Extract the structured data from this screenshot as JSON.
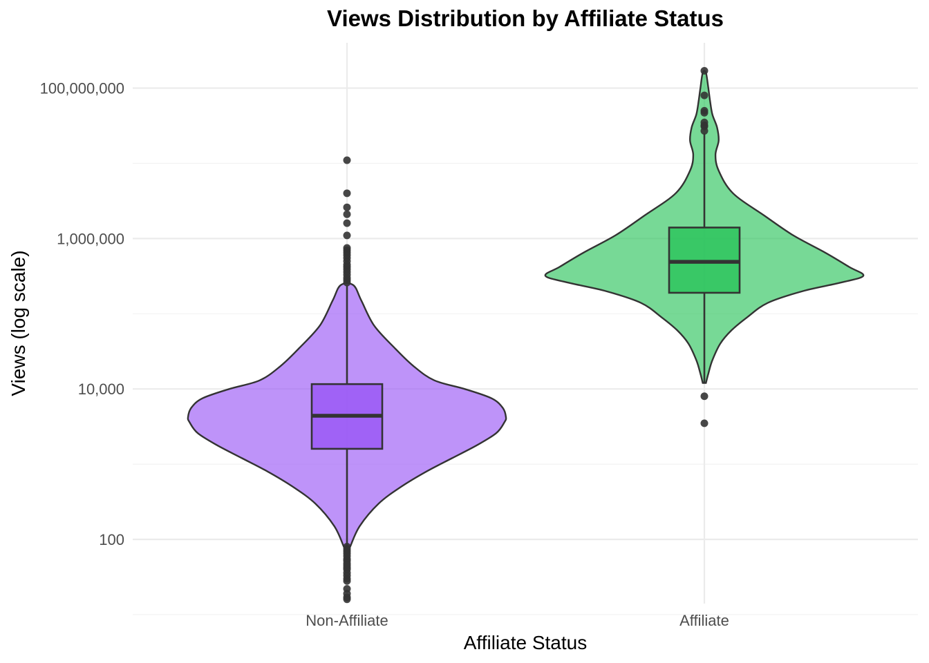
{
  "chart_data": {
    "type": "violin",
    "title": "Views Distribution by Affiliate Status",
    "xlabel": "Affiliate Status",
    "ylabel": "Views (log scale)",
    "y_scale": "log10",
    "ylim": [
      14,
      400000000
    ],
    "y_ticks": [
      {
        "value": 100,
        "label": "100"
      },
      {
        "value": 10000,
        "label": "10,000"
      },
      {
        "value": 1000000,
        "label": "1,000,000"
      },
      {
        "value": 100000000,
        "label": "100,000,000"
      }
    ],
    "grid": true,
    "legend": "none",
    "categories": [
      "Non-Affiliate",
      "Affiliate"
    ],
    "groups": [
      {
        "name": "Non-Affiliate",
        "color": "#9b59f6",
        "box": {
          "q1": 1600,
          "median": 4400,
          "q3": 11600,
          "whisker_low": 80,
          "whisker_high": 240000
        },
        "density": [
          [
            80,
            0.02
          ],
          [
            150,
            0.08
          ],
          [
            300,
            0.2
          ],
          [
            500,
            0.34
          ],
          [
            800,
            0.5
          ],
          [
            1200,
            0.66
          ],
          [
            1800,
            0.82
          ],
          [
            2600,
            0.94
          ],
          [
            3600,
            0.99
          ],
          [
            4200,
            1.0
          ],
          [
            5600,
            0.98
          ],
          [
            7500,
            0.91
          ],
          [
            10000,
            0.74
          ],
          [
            13000,
            0.55
          ],
          [
            20000,
            0.42
          ],
          [
            35000,
            0.3
          ],
          [
            70000,
            0.17
          ],
          [
            150000,
            0.09
          ],
          [
            240000,
            0.04
          ]
        ],
        "outliers": [
          11000000,
          4000000,
          2600000,
          2100000,
          1600000,
          1100000,
          750000,
          700000,
          650000,
          600000,
          550000,
          500000,
          450000,
          420000,
          390000,
          360000,
          330000,
          300000,
          280000,
          260000,
          80,
          75,
          70,
          65,
          60,
          55,
          52,
          48,
          45,
          42,
          40,
          36,
          33,
          30,
          28,
          22,
          19,
          17,
          16,
          12,
          11,
          10,
          9,
          8,
          5
        ]
      },
      {
        "name": "Affiliate",
        "color": "#2ec45e",
        "box": {
          "q1": 190000,
          "median": 490000,
          "q3": 1400000,
          "whisker_low": 12000,
          "whisker_high": 25000000
        },
        "density": [
          [
            12000,
            0.01
          ],
          [
            16000,
            0.025
          ],
          [
            24000,
            0.05
          ],
          [
            40000,
            0.1
          ],
          [
            60000,
            0.17
          ],
          [
            90000,
            0.27
          ],
          [
            140000,
            0.4
          ],
          [
            200000,
            0.62
          ],
          [
            260000,
            0.86
          ],
          [
            320000,
            1.0
          ],
          [
            420000,
            0.91
          ],
          [
            650000,
            0.76
          ],
          [
            1100000,
            0.56
          ],
          [
            2000000,
            0.38
          ],
          [
            4000000,
            0.18
          ],
          [
            8000000,
            0.09
          ],
          [
            13000000,
            0.07
          ],
          [
            20000000,
            0.09
          ],
          [
            30000000,
            0.08
          ],
          [
            45000000,
            0.05
          ],
          [
            70000000,
            0.035
          ],
          [
            100000000,
            0.025
          ],
          [
            160000000,
            0.01
          ]
        ],
        "outliers": [
          170000000,
          80000000,
          50000000,
          47000000,
          35000000,
          32000000,
          31000000,
          27000000,
          8000,
          3500
        ]
      }
    ]
  }
}
